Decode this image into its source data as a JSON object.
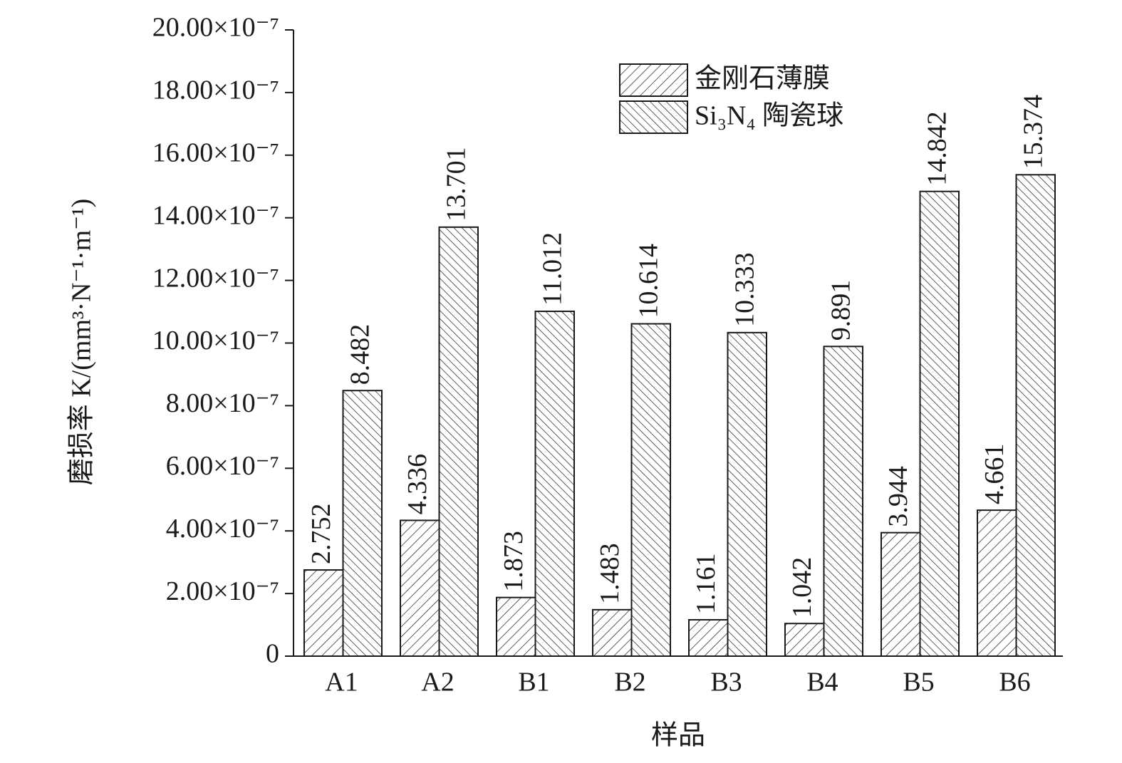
{
  "chart_data": {
    "type": "bar",
    "x_label": "样品",
    "y_label": "磨损率 K/(mm³·N⁻¹·m⁻¹)",
    "categories": [
      "A1",
      "A2",
      "B1",
      "B2",
      "B3",
      "B4",
      "B5",
      "B6"
    ],
    "series": [
      {
        "name": "金刚石薄膜",
        "color": "#1a1a1a",
        "values": [
          2.752,
          4.336,
          1.873,
          1.483,
          1.161,
          1.042,
          3.944,
          4.661
        ]
      },
      {
        "name": "Si₃N₄ 陶瓷球",
        "color": "#1a1a1a",
        "values": [
          8.482,
          13.701,
          11.012,
          10.614,
          10.333,
          9.891,
          14.842,
          15.374
        ]
      }
    ],
    "ylim": [
      0,
      20
    ],
    "yticks": [
      0,
      {
        "value": 2,
        "label": "2.00×10⁻⁷"
      },
      {
        "value": 4,
        "label": "4.00×10⁻⁷"
      },
      {
        "value": 6,
        "label": "6.00×10⁻⁷"
      },
      {
        "value": 8,
        "label": "8.00×10⁻⁷"
      },
      {
        "value": 10,
        "label": "10.00×10⁻⁷"
      },
      {
        "value": 12,
        "label": "12.00×10⁻⁷"
      },
      {
        "value": 14,
        "label": "14.00×10⁻⁷"
      },
      {
        "value": 16,
        "label": "16.00×10⁻⁷"
      },
      {
        "value": 18,
        "label": "18.00×10⁻⁷"
      },
      {
        "value": 20,
        "label": "20.00×10⁻⁷"
      }
    ],
    "legend": "upper right"
  }
}
